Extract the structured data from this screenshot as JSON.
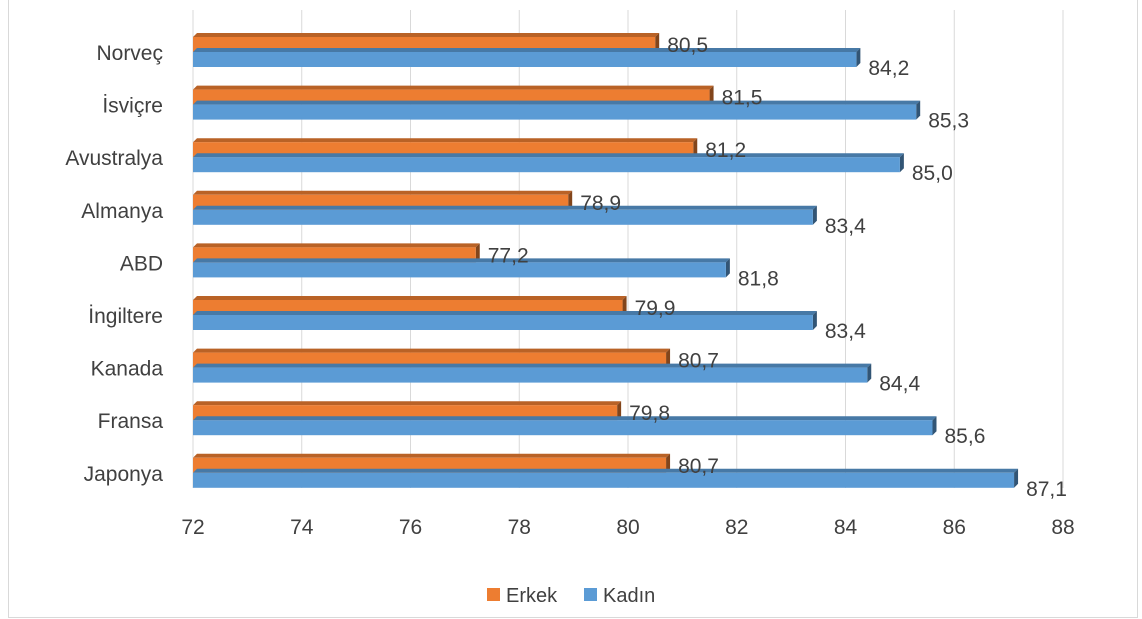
{
  "chart_data": {
    "type": "bar",
    "orientation": "horizontal",
    "categories": [
      "Norveç",
      "İsviçre",
      "Avustralya",
      "Almanya",
      "ABD",
      "İngiltere",
      "Kanada",
      "Fransa",
      "Japonya"
    ],
    "series": [
      {
        "name": "Erkek",
        "color": "#ED7D31",
        "values": [
          80.5,
          81.5,
          81.2,
          78.9,
          77.2,
          79.9,
          80.7,
          79.8,
          80.7
        ],
        "labels": [
          "80,5",
          "81,5",
          "81,2",
          "78,9",
          "77,2",
          "79,9",
          "80,7",
          "79,8",
          "80,7"
        ]
      },
      {
        "name": "Kadın",
        "color": "#5B9BD5",
        "values": [
          84.2,
          85.3,
          85.0,
          83.4,
          81.8,
          83.4,
          84.4,
          85.6,
          87.1
        ],
        "labels": [
          "84,2",
          "85,3",
          "85,0",
          "83,4",
          "81,8",
          "83,4",
          "84,4",
          "85,6",
          "87,1"
        ]
      }
    ],
    "xlim": [
      72,
      88
    ],
    "ticks": [
      72,
      74,
      76,
      78,
      80,
      82,
      84,
      86,
      88
    ],
    "grid": true,
    "legend": "bottom",
    "style": "3d-bar"
  }
}
